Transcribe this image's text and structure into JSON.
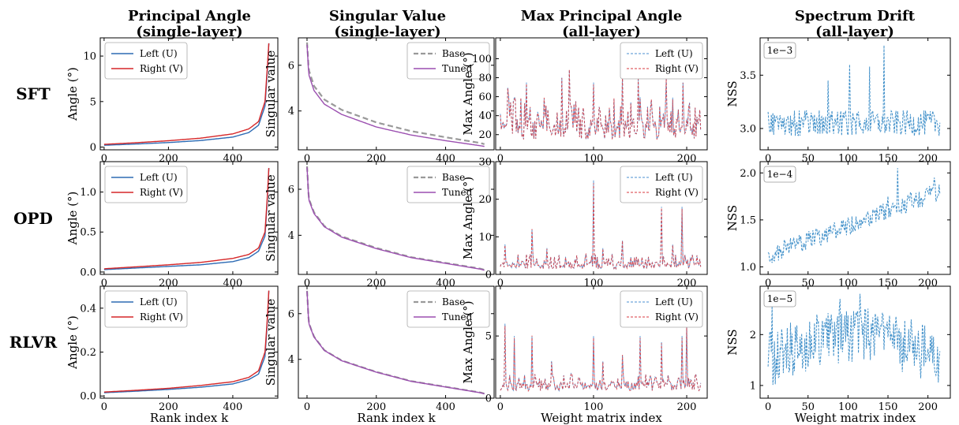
{
  "columns": [
    {
      "title_line1": "Principal Angle",
      "title_line2": "(single-layer)"
    },
    {
      "title_line1": "Singular Value",
      "title_line2": "(single-layer)"
    },
    {
      "title_line1": "Max Principal Angle",
      "title_line2": "(all-layer)"
    },
    {
      "title_line1": "Spectrum Drift",
      "title_line2": "(all-layer)"
    }
  ],
  "rows": [
    "SFT",
    "OPD",
    "RLVR"
  ],
  "colors": {
    "left": "#2d6bb4",
    "right": "#d62728",
    "base": "#999999",
    "tuned": "#9b4fb0",
    "nss": "#3f8fc9"
  },
  "chart_data": [
    {
      "type": "line",
      "row": "SFT",
      "col": 0,
      "ylabel": "Angle (°)",
      "xlabel": "",
      "xlim": [
        -12,
        540
      ],
      "ylim": [
        -0.3,
        12
      ],
      "xticks": [
        0,
        200,
        400
      ],
      "yticks": [
        0,
        5,
        10
      ],
      "kind": "angle",
      "scale": 11.4,
      "rightMul": 1.15,
      "series": [
        {
          "name": "Left (U)",
          "key": "left",
          "x": [
            0,
            100,
            200,
            300,
            400,
            450,
            480,
            500,
            506,
            512
          ],
          "y": [
            0.2,
            0.34,
            0.5,
            0.72,
            1.1,
            1.6,
            2.4,
            4.5,
            7.5,
            11.4
          ]
        },
        {
          "name": "Right (V)",
          "key": "right",
          "x": [
            0,
            100,
            200,
            300,
            400,
            450,
            480,
            500,
            506,
            512
          ],
          "y": [
            0.3,
            0.48,
            0.7,
            0.98,
            1.45,
            2.0,
            2.8,
            5.0,
            8.0,
            11.4
          ]
        }
      ],
      "legend": "upper left"
    },
    {
      "type": "line",
      "row": "SFT",
      "col": 1,
      "ylabel": "Singular value",
      "xlabel": "",
      "xlim": [
        -25,
        540
      ],
      "ylim": [
        2.3,
        7.2
      ],
      "xticks": [
        0,
        200,
        400
      ],
      "yticks": [
        4,
        6
      ],
      "kind": "sv",
      "series": [
        {
          "name": "Base",
          "key": "base",
          "x": [
            0,
            5,
            20,
            50,
            100,
            200,
            300,
            400,
            500,
            512
          ],
          "y": [
            7.0,
            5.8,
            5.1,
            4.5,
            4.05,
            3.5,
            3.12,
            2.85,
            2.6,
            2.55
          ]
        },
        {
          "name": "Tuned",
          "key": "tuned",
          "x": [
            0,
            5,
            20,
            50,
            100,
            200,
            300,
            400,
            500,
            512
          ],
          "y": [
            6.9,
            5.6,
            4.9,
            4.3,
            3.85,
            3.3,
            2.95,
            2.7,
            2.48,
            2.45
          ]
        }
      ],
      "legend": "upper right"
    },
    {
      "type": "line",
      "row": "SFT",
      "col": 2,
      "ylabel": "Max Angle (°)",
      "xlabel": "",
      "xlim": [
        -5,
        222
      ],
      "ylim": [
        4,
        122
      ],
      "xticks": [
        0,
        100,
        200
      ],
      "yticks": [
        20,
        40,
        60,
        80,
        100
      ],
      "kind": "maxangle",
      "base": 15,
      "amp": 45,
      "peaks": [
        [
          8,
          70
        ],
        [
          28,
          75
        ],
        [
          66,
          80
        ],
        [
          74,
          88
        ],
        [
          100,
          75
        ],
        [
          131,
          82
        ],
        [
          148,
          80
        ],
        [
          178,
          80
        ],
        [
          196,
          75
        ]
      ],
      "series": [
        {
          "name": "Left (U)",
          "key": "left"
        },
        {
          "name": "Right (V)",
          "key": "right"
        }
      ],
      "legend": "upper right"
    },
    {
      "type": "line",
      "row": "SFT",
      "col": 3,
      "ylabel": "NSS",
      "xlabel": "",
      "xlim": [
        -10,
        228
      ],
      "ylim": [
        2.8,
        3.85
      ],
      "xticks": [
        0,
        50,
        100,
        150,
        200
      ],
      "yticks": [
        3.0,
        3.5
      ],
      "tickfmt": 1,
      "offset": "1e−3",
      "kind": "nss",
      "nbase": 3.05,
      "ntrend": 0.0,
      "namp": 0.12,
      "npeaks": [
        [
          102,
          3.6
        ],
        [
          127,
          3.58
        ],
        [
          145,
          3.78
        ],
        [
          75,
          3.45
        ]
      ],
      "series": [
        {
          "name": "",
          "key": "nss"
        }
      ]
    },
    {
      "type": "line",
      "row": "OPD",
      "col": 0,
      "ylabel": "Angle (°)",
      "xlabel": "",
      "xlim": [
        -12,
        540
      ],
      "ylim": [
        -0.03,
        1.38
      ],
      "xticks": [
        0,
        200,
        400
      ],
      "yticks": [
        0.0,
        0.5,
        1.0
      ],
      "tickfmt": 1,
      "kind": "angle",
      "series": [
        {
          "name": "Left (U)",
          "key": "left",
          "x": [
            0,
            100,
            200,
            300,
            400,
            450,
            480,
            500,
            506,
            512
          ],
          "y": [
            0.03,
            0.05,
            0.07,
            0.09,
            0.13,
            0.18,
            0.26,
            0.45,
            0.8,
            1.3
          ]
        },
        {
          "name": "Right (V)",
          "key": "right",
          "x": [
            0,
            100,
            200,
            300,
            400,
            450,
            480,
            500,
            506,
            512
          ],
          "y": [
            0.04,
            0.065,
            0.09,
            0.12,
            0.17,
            0.22,
            0.3,
            0.5,
            0.85,
            1.3
          ]
        }
      ],
      "legend": "upper left"
    },
    {
      "type": "line",
      "row": "OPD",
      "col": 1,
      "ylabel": "Singular value",
      "xlabel": "",
      "xlim": [
        -25,
        540
      ],
      "ylim": [
        2.3,
        7.2
      ],
      "xticks": [
        0,
        200,
        400
      ],
      "yticks": [
        4,
        6
      ],
      "kind": "sv",
      "series": [
        {
          "name": "Base",
          "key": "base",
          "x": [
            0,
            5,
            20,
            50,
            100,
            200,
            300,
            400,
            500,
            512
          ],
          "y": [
            7.0,
            5.6,
            5.0,
            4.4,
            3.95,
            3.45,
            3.05,
            2.8,
            2.55,
            2.5
          ]
        },
        {
          "name": "Tuned",
          "key": "tuned",
          "x": [
            0,
            5,
            20,
            50,
            100,
            200,
            300,
            400,
            500,
            512
          ],
          "y": [
            6.95,
            5.55,
            4.95,
            4.37,
            3.92,
            3.42,
            3.03,
            2.78,
            2.53,
            2.48
          ]
        }
      ],
      "legend": "upper right"
    },
    {
      "type": "line",
      "row": "OPD",
      "col": 2,
      "ylabel": "Max Angle (°)",
      "xlabel": "",
      "xlim": [
        -5,
        222
      ],
      "ylim": [
        0,
        30
      ],
      "xticks": [
        0,
        100,
        200
      ],
      "yticks": [
        0,
        10,
        20,
        30
      ],
      "kind": "maxangle",
      "base": 1.5,
      "amp": 4,
      "peaks": [
        [
          5,
          8
        ],
        [
          34,
          12
        ],
        [
          50,
          7
        ],
        [
          100,
          25
        ],
        [
          110,
          7
        ],
        [
          131,
          9
        ],
        [
          173,
          18
        ],
        [
          195,
          18
        ],
        [
          185,
          8
        ]
      ],
      "series": [
        {
          "name": "Left (U)",
          "key": "left"
        },
        {
          "name": "Right (V)",
          "key": "right"
        }
      ],
      "legend": "upper right"
    },
    {
      "type": "line",
      "row": "OPD",
      "col": 3,
      "ylabel": "NSS",
      "xlabel": "",
      "xlim": [
        -10,
        228
      ],
      "ylim": [
        0.92,
        2.12
      ],
      "xticks": [
        0,
        50,
        100,
        150,
        200
      ],
      "yticks": [
        1.0,
        1.5,
        2.0
      ],
      "tickfmt": 1,
      "offset": "1e−4",
      "kind": "nss",
      "nbase": 1.12,
      "ntrend": 0.0032,
      "namp": 0.1,
      "npeaks": [
        [
          162,
          2.05
        ],
        [
          208,
          1.95
        ],
        [
          150,
          1.75
        ]
      ],
      "series": [
        {
          "name": "",
          "key": "nss"
        }
      ]
    },
    {
      "type": "line",
      "row": "RLVR",
      "col": 0,
      "ylabel": "Angle (°)",
      "xlabel": "Rank index k",
      "xlim": [
        -12,
        540
      ],
      "ylim": [
        -0.01,
        0.5
      ],
      "xticks": [
        0,
        200,
        400
      ],
      "yticks": [
        0.0,
        0.2,
        0.4
      ],
      "tickfmt": 1,
      "kind": "angle",
      "series": [
        {
          "name": "Left (U)",
          "key": "left",
          "x": [
            0,
            100,
            200,
            300,
            400,
            450,
            480,
            500,
            506,
            512
          ],
          "y": [
            0.015,
            0.022,
            0.03,
            0.04,
            0.055,
            0.075,
            0.1,
            0.18,
            0.3,
            0.48
          ]
        },
        {
          "name": "Right (V)",
          "key": "right",
          "x": [
            0,
            100,
            200,
            300,
            400,
            450,
            480,
            500,
            506,
            512
          ],
          "y": [
            0.018,
            0.026,
            0.035,
            0.048,
            0.065,
            0.085,
            0.115,
            0.2,
            0.32,
            0.48
          ]
        }
      ],
      "legend": "upper left"
    },
    {
      "type": "line",
      "row": "RLVR",
      "col": 1,
      "ylabel": "Singular value",
      "xlabel": "Rank index k",
      "xlim": [
        -25,
        540
      ],
      "ylim": [
        2.3,
        7.2
      ],
      "xticks": [
        0,
        200,
        400
      ],
      "yticks": [
        4,
        6
      ],
      "kind": "sv",
      "series": [
        {
          "name": "Base",
          "key": "base",
          "x": [
            0,
            5,
            20,
            50,
            100,
            200,
            300,
            400,
            500,
            512
          ],
          "y": [
            7.0,
            5.6,
            5.0,
            4.4,
            3.95,
            3.45,
            3.05,
            2.8,
            2.55,
            2.5
          ]
        },
        {
          "name": "Tuned",
          "key": "tuned",
          "x": [
            0,
            5,
            20,
            50,
            100,
            200,
            300,
            400,
            500,
            512
          ],
          "y": [
            6.98,
            5.58,
            4.98,
            4.39,
            3.94,
            3.44,
            3.04,
            2.79,
            2.54,
            2.49
          ]
        }
      ],
      "legend": "upper right"
    },
    {
      "type": "line",
      "row": "RLVR",
      "col": 2,
      "ylabel": "Max Angle (°)",
      "xlabel": "Weight matrix index",
      "xlim": [
        -5,
        222
      ],
      "ylim": [
        0,
        9
      ],
      "xticks": [
        0,
        100,
        200
      ],
      "yticks": [
        0,
        5
      ],
      "kind": "maxangle",
      "base": 0.6,
      "amp": 1.4,
      "peaks": [
        [
          5,
          6
        ],
        [
          15,
          5
        ],
        [
          34,
          5
        ],
        [
          55,
          3
        ],
        [
          100,
          5
        ],
        [
          110,
          3
        ],
        [
          131,
          3.5
        ],
        [
          150,
          5
        ],
        [
          173,
          4.5
        ],
        [
          195,
          5
        ],
        [
          200,
          6
        ]
      ],
      "series": [
        {
          "name": "Left (U)",
          "key": "left"
        },
        {
          "name": "Right (V)",
          "key": "right"
        }
      ],
      "legend": "upper right"
    },
    {
      "type": "line",
      "row": "RLVR",
      "col": 3,
      "ylabel": "NSS",
      "xlabel": "Weight matrix index",
      "xlim": [
        -10,
        228
      ],
      "ylim": [
        0.75,
        2.95
      ],
      "xticks": [
        0,
        50,
        100,
        150,
        200
      ],
      "yticks": [
        1,
        2
      ],
      "offset": "1e−5",
      "kind": "nss",
      "nbase": 1.5,
      "ntrend": 0.0,
      "namp": 0.55,
      "bump": true,
      "npeaks": [
        [
          115,
          2.8
        ],
        [
          90,
          2.7
        ],
        [
          5,
          2.6
        ]
      ],
      "series": [
        {
          "name": "",
          "key": "nss"
        }
      ]
    }
  ]
}
